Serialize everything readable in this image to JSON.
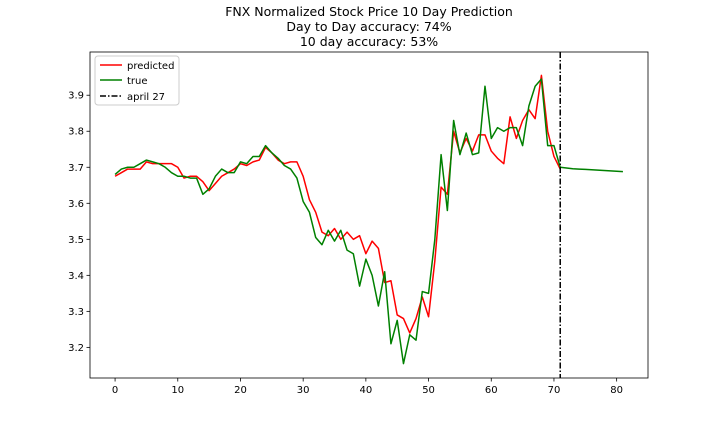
{
  "chart_data": {
    "type": "line",
    "title_lines": [
      "FNX Normalized Stock Price 10 Day Prediction",
      "Day to Day accuracy: 74%",
      "10 day accuracy: 53%"
    ],
    "xlim": [
      -4,
      85
    ],
    "ylim": [
      3.115,
      4.02
    ],
    "xticks": [
      0,
      10,
      20,
      30,
      40,
      50,
      60,
      70,
      80
    ],
    "yticks": [
      3.2,
      3.3,
      3.4,
      3.5,
      3.6,
      3.7,
      3.8,
      3.9
    ],
    "ytick_labels": [
      "3.2",
      "3.3",
      "3.4",
      "3.5",
      "3.6",
      "3.7",
      "3.8",
      "3.9"
    ],
    "grid": false,
    "legend_position": "top-left",
    "vline": {
      "x": 71,
      "label": "april 27",
      "color": "#000000"
    },
    "series": [
      {
        "name": "predicted",
        "color": "#ff0000",
        "x_start": 0,
        "values": [
          3.675,
          3.685,
          3.695,
          3.695,
          3.695,
          3.715,
          3.71,
          3.71,
          3.71,
          3.71,
          3.7,
          3.67,
          3.675,
          3.675,
          3.66,
          3.635,
          3.655,
          3.675,
          3.685,
          3.695,
          3.71,
          3.705,
          3.715,
          3.72,
          3.755,
          3.74,
          3.72,
          3.71,
          3.715,
          3.715,
          3.675,
          3.61,
          3.575,
          3.52,
          3.51,
          3.53,
          3.5,
          3.52,
          3.5,
          3.51,
          3.46,
          3.495,
          3.475,
          3.38,
          3.385,
          3.29,
          3.28,
          3.24,
          3.28,
          3.34,
          3.285,
          3.44,
          3.645,
          3.625,
          3.8,
          3.74,
          3.78,
          3.745,
          3.79,
          3.79,
          3.745,
          3.725,
          3.71,
          3.84,
          3.78,
          3.83,
          3.86,
          3.835,
          3.955,
          3.8,
          3.73,
          3.695
        ]
      },
      {
        "name": "true",
        "color": "#008000",
        "x_start": 0,
        "values": [
          3.68,
          3.695,
          3.7,
          3.7,
          3.71,
          3.72,
          3.715,
          3.71,
          3.7,
          3.685,
          3.675,
          3.675,
          3.67,
          3.67,
          3.625,
          3.64,
          3.675,
          3.695,
          3.685,
          3.685,
          3.715,
          3.71,
          3.73,
          3.73,
          3.76,
          3.74,
          3.725,
          3.705,
          3.695,
          3.67,
          3.605,
          3.575,
          3.505,
          3.485,
          3.525,
          3.495,
          3.525,
          3.47,
          3.46,
          3.37,
          3.445,
          3.4,
          3.315,
          3.41,
          3.21,
          3.275,
          3.155,
          3.235,
          3.22,
          3.355,
          3.35,
          3.5,
          3.735,
          3.58,
          3.83,
          3.735,
          3.795,
          3.735,
          3.74,
          3.925,
          3.78,
          3.81,
          3.8,
          3.81,
          3.81,
          3.76,
          3.87,
          3.925,
          3.945,
          3.76,
          3.76,
          3.7,
          3.698,
          3.696,
          3.695,
          3.694,
          3.693,
          3.692,
          3.691,
          3.69,
          3.689,
          3.688
        ]
      }
    ]
  }
}
